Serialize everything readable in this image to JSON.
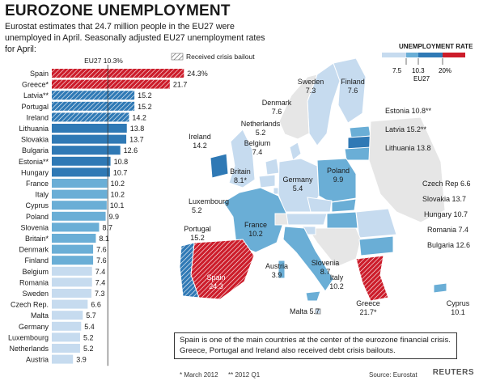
{
  "title": "EUROZONE UNEMPLOYMENT",
  "subtitle": "Eurostat estimates that 24.7 million people in the EU27 were unemployed in April. Seasonally adjusted EU27 unemployment rates for April:",
  "legend": {
    "bailout_label": "Received crisis bailout",
    "rate_title": "UNEMPLOYMENT RATE",
    "rate_ticks": [
      "7.5",
      "10.3",
      "20%"
    ],
    "rate_sub": "EU27",
    "colors": {
      "low": "#c6dbef",
      "mid": "#6aaed6",
      "high": "#2f79b5",
      "crisis": "#cc1c2a"
    }
  },
  "chart_data": {
    "type": "bar",
    "orientation": "horizontal",
    "reference": {
      "label": "EU27 10.3%",
      "value": 10.3
    },
    "xlim": [
      0,
      25
    ],
    "categories": [
      "Spain",
      "Greece*",
      "Latvia**",
      "Portugal",
      "Ireland",
      "Lithuania",
      "Slovakia",
      "Bulgaria",
      "Estonia**",
      "Hungary",
      "France",
      "Italy",
      "Cyprus",
      "Poland",
      "Slovenia",
      "Britain*",
      "Denmark",
      "Finland",
      "Belgium",
      "Romania",
      "Sweden",
      "Czech Rep.",
      "Malta",
      "Germany",
      "Luxembourg",
      "Netherlands",
      "Austria"
    ],
    "values": [
      24.3,
      21.7,
      15.2,
      15.2,
      14.2,
      13.8,
      13.7,
      12.6,
      10.8,
      10.7,
      10.2,
      10.2,
      10.1,
      9.9,
      8.7,
      8.1,
      7.6,
      7.6,
      7.4,
      7.4,
      7.3,
      6.6,
      5.7,
      5.4,
      5.2,
      5.2,
      3.9
    ],
    "value_labels": [
      "24.3%",
      "21.7",
      "15.2",
      "15.2",
      "14.2",
      "13.8",
      "13.7",
      "12.6",
      "10.8",
      "10.7",
      "10.2",
      "10.2",
      "10.1",
      "9.9",
      "8.7",
      "8.1",
      "7.6",
      "7.6",
      "7.4",
      "7.4",
      "7.3",
      "6.6",
      "5.7",
      "5.4",
      "5.2",
      "5.2",
      "3.9"
    ],
    "bailout": [
      true,
      true,
      true,
      true,
      true,
      false,
      false,
      false,
      false,
      false,
      false,
      false,
      false,
      false,
      false,
      false,
      false,
      false,
      false,
      false,
      false,
      false,
      false,
      false,
      false,
      false,
      false
    ]
  },
  "map": {
    "labels": [
      {
        "name": "Sweden",
        "value": "7.3"
      },
      {
        "name": "Finland",
        "value": "7.6"
      },
      {
        "name": "Denmark",
        "value": "7.6"
      },
      {
        "name": "Netherlands",
        "value": "5.2"
      },
      {
        "name": "Belgium",
        "value": "7.4"
      },
      {
        "name": "Ireland",
        "value": "14.2"
      },
      {
        "name": "Britain",
        "value": "8.1*"
      },
      {
        "name": "Germany",
        "value": "5.4"
      },
      {
        "name": "Poland",
        "value": "9.9"
      },
      {
        "name": "Luxembourg",
        "value": "5.2"
      },
      {
        "name": "France",
        "value": "10.2"
      },
      {
        "name": "Portugal",
        "value": "15.2"
      },
      {
        "name": "Spain",
        "value": "24.3"
      },
      {
        "name": "Austria",
        "value": "3.9"
      },
      {
        "name": "Slovenia",
        "value": "8.7"
      },
      {
        "name": "Italy",
        "value": "10.2"
      },
      {
        "name": "Malta",
        "value": "5.7"
      },
      {
        "name": "Greece",
        "value": "21.7*"
      },
      {
        "name": "Cyprus",
        "value": "10.1"
      },
      {
        "name": "Estonia",
        "value": "10.8**"
      },
      {
        "name": "Latvia",
        "value": "15.2**"
      },
      {
        "name": "Lithuania",
        "value": "13.8"
      },
      {
        "name": "Czech Rep",
        "value": "6.6"
      },
      {
        "name": "Slovakia",
        "value": "13.7"
      },
      {
        "name": "Hungary",
        "value": "10.7"
      },
      {
        "name": "Romania",
        "value": "7.4"
      },
      {
        "name": "Bulgaria",
        "value": "12.6"
      }
    ]
  },
  "callout": "Spain is one of the main countries at the center of the eurozone financial crisis. Greece, Portugal and Ireland also received debt crisis bailouts.",
  "footnotes": {
    "a": "* March 2012",
    "b": "** 2012 Q1"
  },
  "source": "Source: Eurostat",
  "brand": "REUTERS"
}
